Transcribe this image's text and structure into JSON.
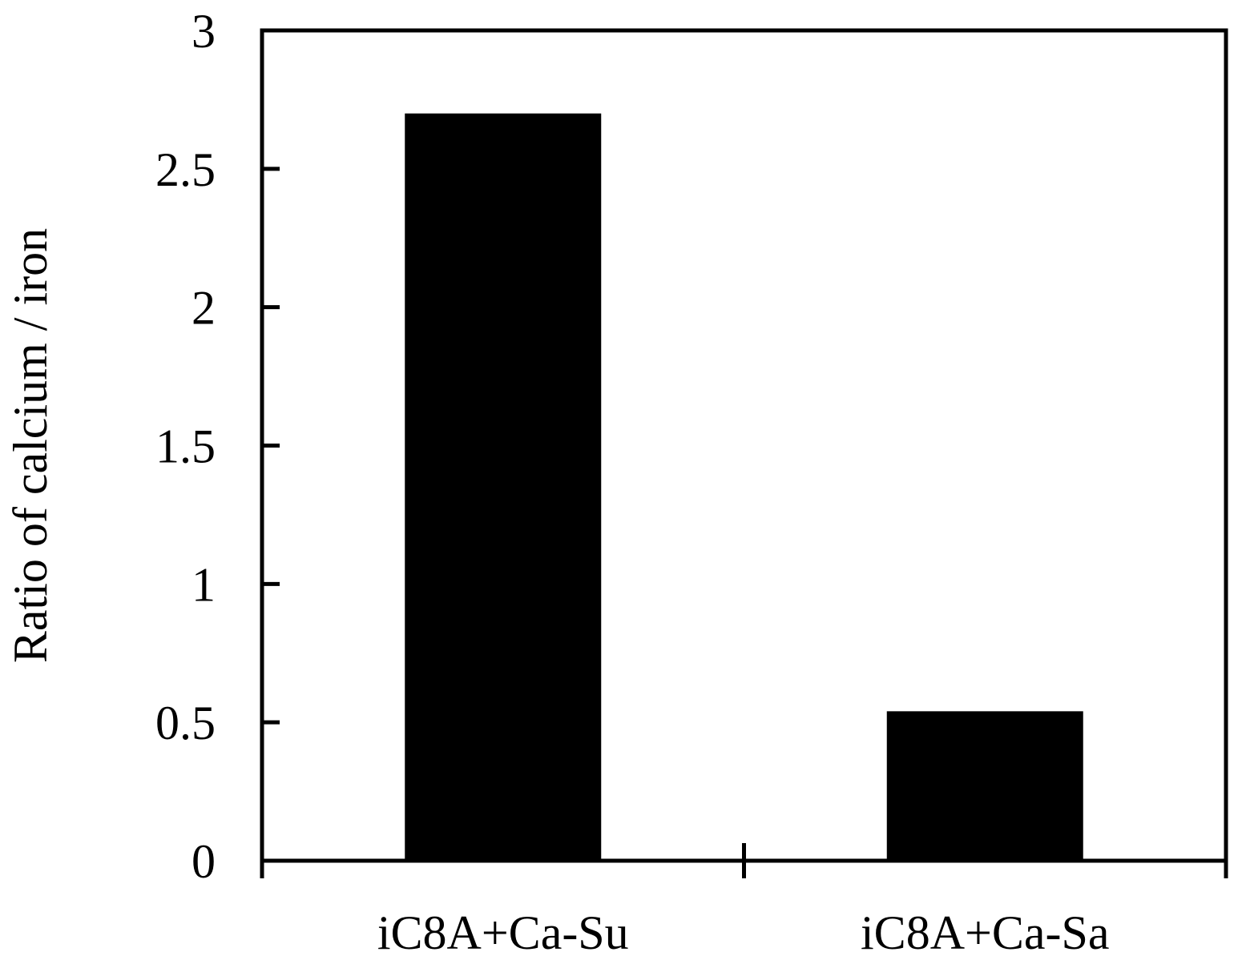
{
  "chart_data": {
    "type": "bar",
    "title": "",
    "xlabel": "",
    "ylabel": "Ratio of calcium / iron",
    "categories": [
      "iC8A+Ca-Su",
      "iC8A+Ca-Sa"
    ],
    "values": [
      2.7,
      0.54
    ],
    "ylim": [
      0,
      3
    ],
    "yticks": [
      "0",
      "0.5",
      "1",
      "1.5",
      "2",
      "2.5",
      "3"
    ],
    "ytick_values": [
      0,
      0.5,
      1,
      1.5,
      2,
      2.5,
      3
    ],
    "bar_color": "#000000",
    "grid": false,
    "legend": "none"
  }
}
